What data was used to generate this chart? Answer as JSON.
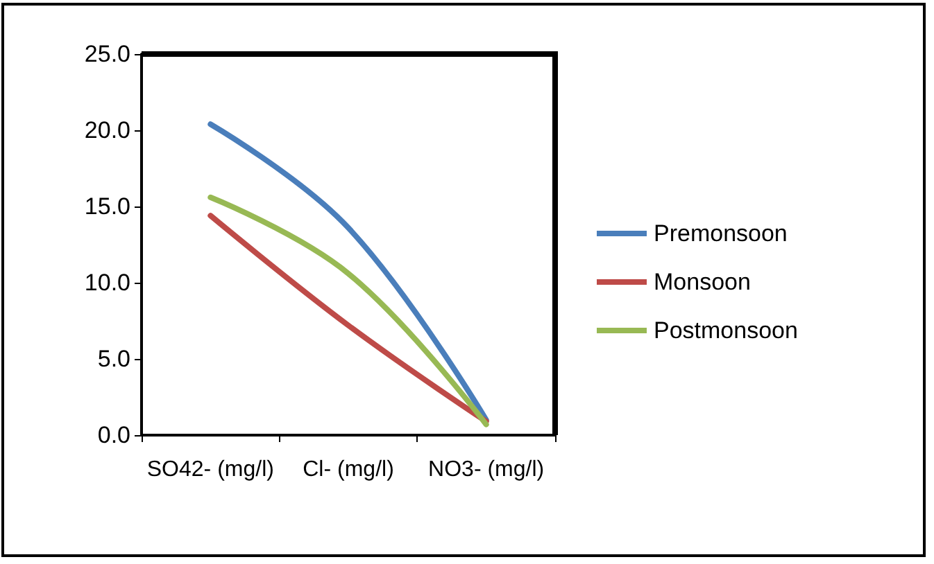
{
  "chart_data": {
    "type": "line",
    "categories": [
      "SO42- (mg/l)",
      "Cl- (mg/l)",
      "NO3- (mg/l)"
    ],
    "series": [
      {
        "name": "Premonsoon",
        "color": "#4a7ebb",
        "values": [
          20.4,
          13.6,
          1.0
        ]
      },
      {
        "name": "Monsoon",
        "color": "#be4b48",
        "values": [
          14.4,
          7.2,
          0.9
        ]
      },
      {
        "name": "Postmonsoon",
        "color": "#98b954",
        "values": [
          15.6,
          10.6,
          0.7
        ]
      }
    ],
    "ylim": [
      0,
      25
    ],
    "yticks": [
      {
        "value": 0,
        "label": "0.0"
      },
      {
        "value": 5,
        "label": "5.0"
      },
      {
        "value": 10,
        "label": "10.0"
      },
      {
        "value": 15,
        "label": "15.0"
      },
      {
        "value": 20,
        "label": "20.0"
      },
      {
        "value": 25,
        "label": "25.0"
      }
    ],
    "grid": false,
    "legend": "right",
    "marker": "none"
  }
}
